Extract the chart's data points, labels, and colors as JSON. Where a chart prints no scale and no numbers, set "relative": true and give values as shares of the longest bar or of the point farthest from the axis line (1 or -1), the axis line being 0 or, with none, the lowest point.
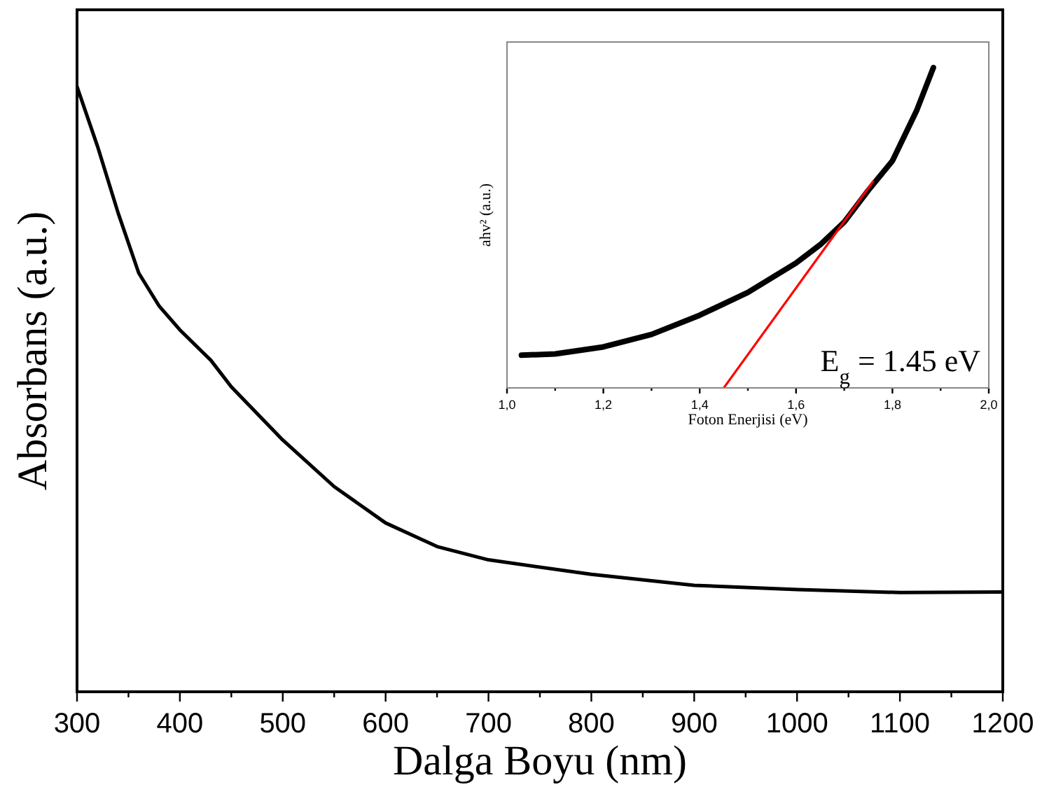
{
  "chart_data": [
    {
      "type": "line",
      "xlabel": "Dalga Boyu (nm)",
      "ylabel": "Absorbans (a.u.)",
      "relative": true,
      "xlim": [
        300,
        1200
      ],
      "xticks": [
        300,
        {
          "value": 350,
          "label": null
        },
        400,
        {
          "value": 450,
          "label": null
        },
        500,
        {
          "value": 550,
          "label": null
        },
        600,
        {
          "value": 650,
          "label": null
        },
        700,
        {
          "value": 750,
          "label": null
        },
        800,
        {
          "value": 850,
          "label": null
        },
        900,
        {
          "value": 950,
          "label": null
        },
        1000,
        {
          "value": 1050,
          "label": null
        },
        1100,
        {
          "value": 1150,
          "label": null
        },
        1200
      ],
      "grid": false,
      "marker": "none",
      "line_style": "solid",
      "series": [
        {
          "color": "#000000",
          "x": [
            300,
            320,
            340,
            360,
            380,
            400,
            430,
            450,
            500,
            550,
            600,
            650,
            700,
            800,
            900,
            1000,
            1100,
            1200
          ],
          "values": [
            1.0,
            0.901,
            0.791,
            0.692,
            0.637,
            0.598,
            0.548,
            0.504,
            0.416,
            0.339,
            0.279,
            0.24,
            0.218,
            0.194,
            0.176,
            0.169,
            0.164,
            0.165
          ]
        }
      ]
    },
    {
      "type": "line",
      "xlabel": "Foton Enerjisi (eV)",
      "ylabel": "ahv² (a.u.)",
      "relative": true,
      "xlim": [
        1.0,
        2.0
      ],
      "xticks": [
        {
          "value": 1.0,
          "label": "1,0"
        },
        {
          "value": 1.1,
          "label": null
        },
        {
          "value": 1.2,
          "label": "1,2"
        },
        {
          "value": 1.3,
          "label": null
        },
        {
          "value": 1.4,
          "label": "1,4"
        },
        {
          "value": 1.5,
          "label": null
        },
        {
          "value": 1.6,
          "label": "1,6"
        },
        {
          "value": 1.7,
          "label": null
        },
        {
          "value": 1.8,
          "label": "1,8"
        },
        {
          "value": 1.9,
          "label": null
        },
        {
          "value": 2.0,
          "label": "2,0"
        }
      ],
      "grid": false,
      "marker": "none",
      "line_style": "solid",
      "annotations": [
        "E$_{g}$ = 1.45 eV"
      ],
      "series": [
        {
          "color": "#000000",
          "x": [
            1.03,
            1.1,
            1.2,
            1.3,
            1.4,
            1.5,
            1.6,
            1.65,
            1.7,
            1.75,
            1.8,
            1.85,
            1.885
          ],
          "values": [
            0.102,
            0.106,
            0.128,
            0.167,
            0.227,
            0.298,
            0.39,
            0.447,
            0.518,
            0.617,
            0.709,
            0.865,
            1.0
          ]
        },
        {
          "type": "line",
          "color": "#ff0000",
          "x": [
            1.45,
            1.76
          ],
          "values": [
            0,
            0.645
          ]
        }
      ]
    }
  ]
}
